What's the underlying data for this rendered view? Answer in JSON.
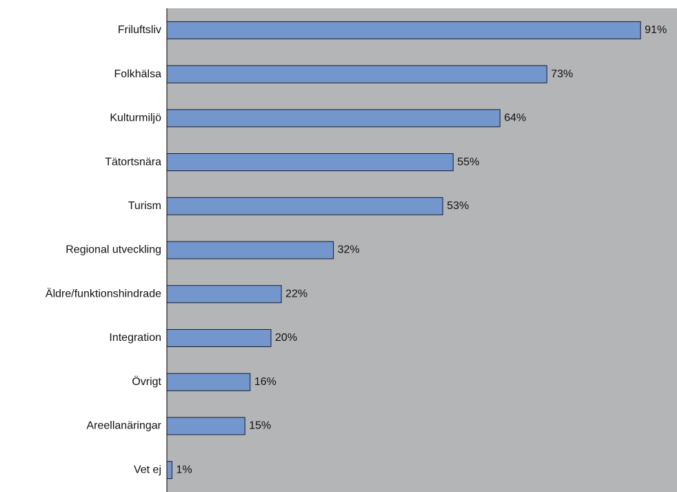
{
  "chart_data": {
    "type": "barh",
    "categories": [
      "Friluftsliv",
      "Folkhälsa",
      "Kulturmiljö",
      "Tätortsnära",
      "Turism",
      "Regional utveckling",
      "Äldre/funktionshindrade",
      "Integration",
      "Övrigt",
      "Areellanäringar",
      "Vet ej"
    ],
    "values": [
      91,
      73,
      64,
      55,
      53,
      32,
      22,
      20,
      16,
      15,
      1
    ],
    "value_labels": [
      "91%",
      "73%",
      "64%",
      "55%",
      "53%",
      "32%",
      "22%",
      "20%",
      "16%",
      "15%",
      "1%"
    ],
    "color": "#7396cc",
    "background": "#b4b5b7",
    "xlim": [
      0,
      98
    ]
  }
}
